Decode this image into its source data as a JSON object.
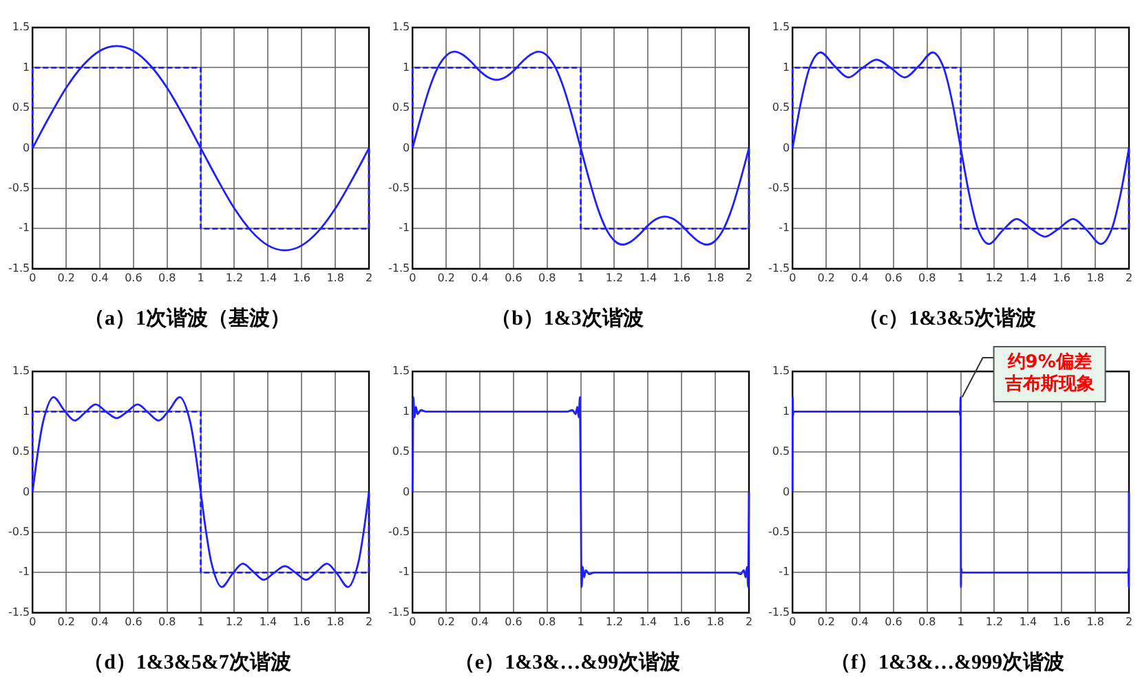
{
  "chart_data": [
    {
      "type": "line",
      "title": "（a）1次谐波（基波）",
      "xlim": [
        0,
        2
      ],
      "xticks": [
        0,
        0.2,
        0.4,
        0.6,
        0.8,
        1,
        1.2,
        1.4,
        1.6,
        1.8,
        2
      ],
      "ylim": [
        -1.5,
        1.5
      ],
      "yticks": [
        -1.5,
        -1,
        -0.5,
        0,
        0.5,
        1,
        1.5
      ],
      "grid": true,
      "marker": "none",
      "series": [
        {
          "color": "#1f1fff",
          "line_style": "dashed",
          "x": [
            0,
            0,
            1,
            1,
            2,
            2
          ],
          "values": [
            0,
            1,
            1,
            -1,
            -1,
            0
          ]
        },
        {
          "color": "#1f1fff",
          "line_style": "solid",
          "x": [
            0,
            0.1,
            0.2,
            0.3,
            0.4,
            0.5,
            0.6,
            0.7,
            0.8,
            0.9,
            1,
            1.1,
            1.2,
            1.3,
            1.4,
            1.5,
            1.6,
            1.7,
            1.8,
            1.9,
            2
          ],
          "values": [
            0,
            0.39,
            0.75,
            1.03,
            1.21,
            1.27,
            1.21,
            1.03,
            0.75,
            0.39,
            0,
            -0.39,
            -0.75,
            -1.03,
            -1.21,
            -1.27,
            -1.21,
            -1.03,
            -0.75,
            -0.39,
            0
          ]
        }
      ]
    },
    {
      "type": "line",
      "title": "（b）1&3次谐波",
      "xlim": [
        0,
        2
      ],
      "xticks": [
        0,
        0.2,
        0.4,
        0.6,
        0.8,
        1,
        1.2,
        1.4,
        1.6,
        1.8,
        2
      ],
      "ylim": [
        -1.5,
        1.5
      ],
      "yticks": [
        -1.5,
        -1,
        -0.5,
        0,
        0.5,
        1,
        1.5
      ],
      "grid": true,
      "marker": "none",
      "series": [
        {
          "color": "#1f1fff",
          "line_style": "dashed",
          "x": [
            0,
            0,
            1,
            1,
            2,
            2
          ],
          "values": [
            0,
            1,
            1,
            -1,
            -1,
            0
          ]
        },
        {
          "color": "#1f1fff",
          "line_style": "solid",
          "x": [
            0,
            0.05,
            0.1,
            0.15,
            0.2,
            0.25,
            0.3,
            0.35,
            0.4,
            0.45,
            0.5,
            0.55,
            0.6,
            0.65,
            0.7,
            0.75,
            0.8,
            0.85,
            0.9,
            0.95,
            1,
            1.05,
            1.1,
            1.15,
            1.2,
            1.25,
            1.3,
            1.35,
            1.4,
            1.45,
            1.5,
            1.55,
            1.6,
            1.65,
            1.7,
            1.75,
            1.8,
            1.85,
            1.9,
            1.95,
            2
          ],
          "values": [
            0,
            0.39,
            0.74,
            1,
            1.15,
            1.2,
            1.16,
            1.07,
            0.96,
            0.88,
            0.85,
            0.88,
            0.96,
            1.07,
            1.16,
            1.2,
            1.15,
            1,
            0.74,
            0.39,
            0,
            -0.39,
            -0.74,
            -1,
            -1.15,
            -1.2,
            -1.16,
            -1.07,
            -0.96,
            -0.88,
            -0.85,
            -0.88,
            -0.96,
            -1.07,
            -1.16,
            -1.2,
            -1.15,
            -1,
            -0.74,
            -0.39,
            0
          ]
        }
      ]
    },
    {
      "type": "line",
      "title": "（c）1&3&5次谐波",
      "xlim": [
        0,
        2
      ],
      "xticks": [
        0,
        0.2,
        0.4,
        0.6,
        0.8,
        1,
        1.2,
        1.4,
        1.6,
        1.8,
        2
      ],
      "ylim": [
        -1.5,
        1.5
      ],
      "yticks": [
        -1.5,
        -1,
        -0.5,
        0,
        0.5,
        1,
        1.5
      ],
      "grid": true,
      "marker": "none",
      "series": [
        {
          "color": "#1f1fff",
          "line_style": "dashed",
          "x": [
            0,
            0,
            1,
            1,
            2,
            2
          ],
          "values": [
            0,
            1,
            1,
            -1,
            -1,
            0
          ]
        },
        {
          "color": "#1f1fff",
          "line_style": "solid",
          "x": [
            0,
            0.05,
            0.1,
            0.167,
            0.25,
            0.333,
            0.417,
            0.5,
            0.583,
            0.667,
            0.75,
            0.833,
            0.9,
            0.95,
            1,
            1.05,
            1.1,
            1.167,
            1.25,
            1.333,
            1.417,
            1.5,
            1.583,
            1.667,
            1.75,
            1.833,
            1.9,
            1.95,
            2
          ],
          "values": [
            0,
            0.57,
            0.99,
            1.19,
            1.02,
            0.88,
            1,
            1.1,
            1,
            0.88,
            1.02,
            1.19,
            0.99,
            0.57,
            0,
            -0.57,
            -0.99,
            -1.19,
            -1.02,
            -0.88,
            -1,
            -1.1,
            -1,
            -0.88,
            -1.02,
            -1.19,
            -0.99,
            -0.57,
            0
          ]
        }
      ]
    },
    {
      "type": "line",
      "title": "（d）1&3&5&7次谐波",
      "xlim": [
        0,
        2
      ],
      "xticks": [
        0,
        0.2,
        0.4,
        0.6,
        0.8,
        1,
        1.2,
        1.4,
        1.6,
        1.8,
        2
      ],
      "ylim": [
        -1.5,
        1.5
      ],
      "yticks": [
        -1.5,
        -1,
        -0.5,
        0,
        0.5,
        1,
        1.5
      ],
      "grid": true,
      "marker": "none",
      "series": [
        {
          "color": "#1f1fff",
          "line_style": "dashed",
          "x": [
            0,
            0,
            1,
            1,
            2,
            2
          ],
          "values": [
            0,
            1,
            1,
            -1,
            -1,
            0
          ]
        },
        {
          "color": "#1f1fff",
          "line_style": "solid",
          "x": [
            0,
            0.03,
            0.0625,
            0.125,
            0.1875,
            0.25,
            0.3125,
            0.375,
            0.4375,
            0.5,
            0.5625,
            0.625,
            0.6875,
            0.75,
            0.8125,
            0.875,
            0.9375,
            0.97,
            1,
            1.03,
            1.0625,
            1.125,
            1.1875,
            1.25,
            1.3125,
            1.375,
            1.4375,
            1.5,
            1.5625,
            1.625,
            1.6875,
            1.75,
            1.8125,
            1.875,
            1.9375,
            1.97,
            2
          ],
          "values": [
            0,
            0.47,
            0.87,
            1.18,
            1.02,
            0.89,
            0.99,
            1.09,
            1,
            0.92,
            1,
            1.09,
            0.99,
            0.89,
            1.02,
            1.18,
            0.87,
            0.47,
            0,
            -0.47,
            -0.87,
            -1.18,
            -1.02,
            -0.89,
            -0.99,
            -1.09,
            -1,
            -0.92,
            -1,
            -1.09,
            -0.99,
            -0.89,
            -1.02,
            -1.18,
            -0.87,
            -0.47,
            0
          ]
        }
      ]
    },
    {
      "type": "line",
      "title": "（e）1&3&…&99次谐波",
      "xlim": [
        0,
        2
      ],
      "xticks": [
        0,
        0.2,
        0.4,
        0.6,
        0.8,
        1,
        1.2,
        1.4,
        1.6,
        1.8,
        2
      ],
      "ylim": [
        -1.5,
        1.5
      ],
      "yticks": [
        -1.5,
        -1,
        -0.5,
        0,
        0.5,
        1,
        1.5
      ],
      "grid": true,
      "marker": "none",
      "series": [
        {
          "color": "#1f1fff",
          "line_style": "solid",
          "x": [
            0,
            0.005,
            0.012,
            0.02,
            0.03,
            0.05,
            0.08,
            0.92,
            0.95,
            0.97,
            0.98,
            0.988,
            0.995,
            1,
            1.005,
            1.012,
            1.02,
            1.03,
            1.05,
            1.08,
            1.92,
            1.95,
            1.97,
            1.98,
            1.988,
            1.995,
            2
          ],
          "values": [
            0,
            1.18,
            0.93,
            1.06,
            0.97,
            1.02,
            1,
            1,
            1.02,
            0.97,
            1.06,
            0.93,
            1.18,
            0,
            -1.18,
            -0.93,
            -1.06,
            -0.97,
            -1.02,
            -1,
            -1,
            -1.02,
            -0.97,
            -1.06,
            -0.93,
            -1.18,
            0
          ]
        }
      ]
    },
    {
      "type": "line",
      "title": "（f）1&3&…&999次谐波",
      "xlim": [
        0,
        2
      ],
      "xticks": [
        0,
        0.2,
        0.4,
        0.6,
        0.8,
        1,
        1.2,
        1.4,
        1.6,
        1.8,
        2
      ],
      "ylim": [
        -1.5,
        1.5
      ],
      "yticks": [
        -1.5,
        -1,
        -0.5,
        0,
        0.5,
        1,
        1.5
      ],
      "grid": true,
      "marker": "none",
      "annotations": [
        {
          "text": "约9%偏差",
          "x": 1,
          "y": 1.18
        },
        {
          "text": "吉布斯现象",
          "x": 1,
          "y": 1.18
        }
      ],
      "series": [
        {
          "color": "#1f1fff",
          "line_style": "solid",
          "x": [
            0,
            0.001,
            0.003,
            0.006,
            0.994,
            0.997,
            0.999,
            1,
            1.001,
            1.003,
            1.006,
            1.994,
            1.997,
            1.999,
            2
          ],
          "values": [
            0,
            1.18,
            0.95,
            1,
            1,
            0.95,
            1.18,
            0,
            -1.18,
            -0.95,
            -1,
            -1,
            -0.95,
            -1.18,
            0
          ]
        }
      ]
    }
  ]
}
